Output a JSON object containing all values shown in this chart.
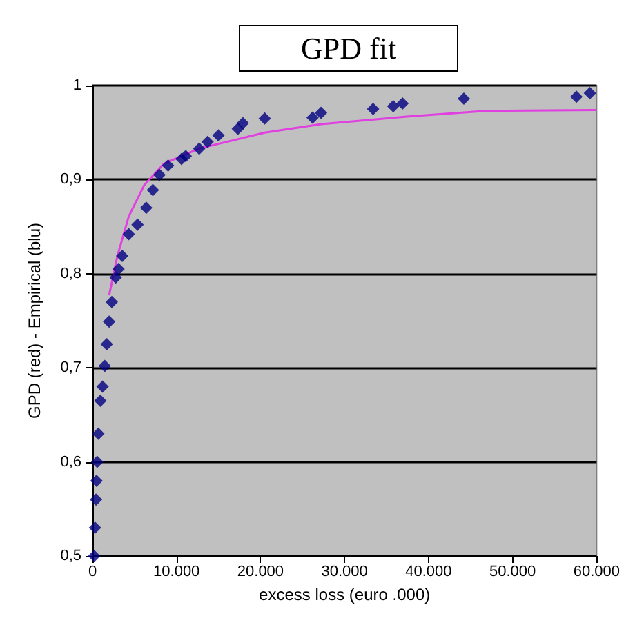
{
  "chart_data": {
    "type": "scatter",
    "title": "GPD fit",
    "xlabel": "excess loss (euro .000)",
    "ylabel": "GPD (red) - Empirical (blu)",
    "xlim": [
      0,
      60000
    ],
    "xticks": [
      0,
      {
        "value": 10000,
        "label": "10.000"
      },
      {
        "value": 20000,
        "label": "20.000"
      },
      {
        "value": 30000,
        "label": "30.000"
      },
      {
        "value": 40000,
        "label": "40.000"
      },
      {
        "value": 50000,
        "label": "50.000"
      },
      {
        "value": 60000,
        "label": "60.000"
      }
    ],
    "ylim": [
      0.5,
      1
    ],
    "yticks": [
      {
        "value": 0.5,
        "label": "0,5"
      },
      {
        "value": 0.6,
        "label": "0,6"
      },
      {
        "value": 0.7,
        "label": "0,7"
      },
      {
        "value": 0.8,
        "label": "0,8"
      },
      {
        "value": 0.9,
        "label": "0,9"
      },
      1
    ],
    "grid": "y",
    "marker": "diamond",
    "series": [
      {
        "color": "#000080",
        "x": [
          200,
          300,
          420,
          480,
          560,
          700,
          940,
          1200,
          1460,
          1700,
          1980,
          2300,
          2760,
          3100,
          3540,
          4320,
          5360,
          6400,
          7190,
          7970,
          9000,
          10600,
          11100,
          12700,
          13700,
          15000,
          17300,
          17900,
          20500,
          26200,
          27200,
          33400,
          35800,
          36900,
          44200,
          57600,
          59200
        ],
        "values": [
          0.5,
          0.53,
          0.56,
          0.58,
          0.6,
          0.63,
          0.665,
          0.68,
          0.702,
          0.725,
          0.749,
          0.77,
          0.796,
          0.805,
          0.819,
          0.842,
          0.852,
          0.87,
          0.889,
          0.905,
          0.915,
          0.922,
          0.925,
          0.933,
          0.94,
          0.947,
          0.954,
          0.96,
          0.965,
          0.966,
          0.971,
          0.975,
          0.978,
          0.981,
          0.986,
          0.988,
          0.992
        ]
      },
      {
        "type": "line",
        "color": "#e040e0",
        "marker": "none",
        "x": [
          1980,
          2970,
          4320,
          6150,
          8500,
          12700,
          20500,
          27200,
          37400,
          46800,
          60000
        ],
        "values": [
          0.777,
          0.819,
          0.861,
          0.894,
          0.917,
          0.933,
          0.95,
          0.959,
          0.967,
          0.973,
          0.974
        ]
      }
    ]
  }
}
